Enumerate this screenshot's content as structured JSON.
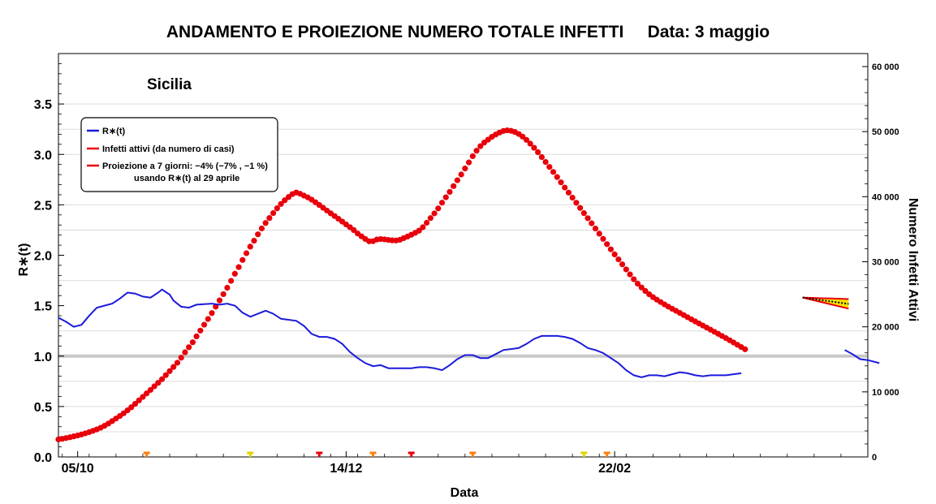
{
  "chart_data": {
    "type": "line",
    "title": "ANDAMENTO E PROIEZIONE NUMERO TOTALE INFETTI",
    "date_label": "Data: 3 maggio",
    "region_label": "Sicilia",
    "xlabel": "Data",
    "ylabel_left": "R∗(t)",
    "ylabel_right": "Numero Infetti Attivi",
    "x_ticks": [
      "05/10",
      "14/12",
      "22/02"
    ],
    "x_tick_positions": [
      5,
      75,
      145
    ],
    "xlim": [
      0,
      211
    ],
    "ylim_left": [
      0,
      4.0
    ],
    "y_ticks_left": [
      "0.0",
      "0.5",
      "1.0",
      "1.5",
      "2.0",
      "2.5",
      "3.0",
      "3.5"
    ],
    "y_tick_values_left": [
      0,
      0.5,
      1.0,
      1.5,
      2.0,
      2.5,
      3.0,
      3.5
    ],
    "ylim_right": [
      0,
      62000
    ],
    "y_ticks_right": [
      "0",
      "10 000",
      "20 000",
      "30 000",
      "40 000",
      "50 000",
      "60 000"
    ],
    "y_tick_values_right": [
      0,
      10000,
      20000,
      30000,
      40000,
      50000,
      60000
    ],
    "reference_line": 1.0,
    "grid_lines_left": [
      0.25,
      0.5,
      0.75,
      1.25,
      1.75,
      2.25,
      2.5,
      3.0,
      3.25,
      3.5
    ],
    "legend": {
      "placement": "top-left",
      "entries": [
        {
          "label": "R∗(t)",
          "color": "#1a1adc"
        },
        {
          "label": "Infetti attivi (da numero di casi)",
          "color": "#e8000b"
        },
        {
          "label": "Proiezione a 7 giorni: −4% (−7% , −1 %)",
          "color": "#e8000b"
        }
      ],
      "note": "usando R∗(t) al 29 aprile"
    },
    "series": [
      {
        "name": "R∗(t)",
        "color": "#1a1adc",
        "axis": "left",
        "segments": [
          [
            [
              0,
              1.38
            ],
            [
              2,
              1.34
            ],
            [
              4,
              1.29
            ],
            [
              6,
              1.31
            ],
            [
              8,
              1.4
            ],
            [
              10,
              1.48
            ],
            [
              14,
              1.52
            ],
            [
              16,
              1.57
            ],
            [
              18,
              1.63
            ],
            [
              20,
              1.62
            ],
            [
              22,
              1.59
            ],
            [
              24,
              1.58
            ],
            [
              26,
              1.63
            ],
            [
              27,
              1.66
            ],
            [
              29,
              1.61
            ],
            [
              30,
              1.55
            ],
            [
              32,
              1.49
            ],
            [
              34,
              1.48
            ],
            [
              36,
              1.51
            ],
            [
              40,
              1.52
            ],
            [
              42,
              1.51
            ],
            [
              44,
              1.52
            ],
            [
              46,
              1.5
            ],
            [
              48,
              1.43
            ],
            [
              50,
              1.39
            ],
            [
              52,
              1.42
            ],
            [
              54,
              1.45
            ],
            [
              56,
              1.42
            ],
            [
              58,
              1.37
            ],
            [
              62,
              1.35
            ],
            [
              64,
              1.3
            ],
            [
              66,
              1.22
            ],
            [
              68,
              1.19
            ],
            [
              70,
              1.19
            ],
            [
              72,
              1.17
            ],
            [
              74,
              1.12
            ],
            [
              76,
              1.04
            ],
            [
              78,
              0.98
            ],
            [
              80,
              0.93
            ],
            [
              82,
              0.9
            ],
            [
              84,
              0.91
            ],
            [
              86,
              0.88
            ],
            [
              88,
              0.88
            ],
            [
              90,
              0.88
            ],
            [
              92,
              0.88
            ],
            [
              94,
              0.89
            ],
            [
              96,
              0.89
            ],
            [
              98,
              0.88
            ],
            [
              100,
              0.86
            ],
            [
              102,
              0.91
            ],
            [
              104,
              0.97
            ],
            [
              106,
              1.01
            ],
            [
              108,
              1.01
            ],
            [
              110,
              0.98
            ],
            [
              112,
              0.98
            ],
            [
              114,
              1.02
            ],
            [
              116,
              1.06
            ],
            [
              120,
              1.08
            ],
            [
              122,
              1.12
            ],
            [
              124,
              1.17
            ],
            [
              126,
              1.2
            ],
            [
              128,
              1.2
            ],
            [
              130,
              1.2
            ],
            [
              132,
              1.19
            ],
            [
              134,
              1.17
            ],
            [
              136,
              1.13
            ],
            [
              138,
              1.08
            ],
            [
              140,
              1.06
            ],
            [
              142,
              1.03
            ],
            [
              144,
              0.98
            ],
            [
              146,
              0.93
            ],
            [
              148,
              0.86
            ],
            [
              150,
              0.81
            ],
            [
              152,
              0.79
            ],
            [
              154,
              0.81
            ],
            [
              156,
              0.81
            ],
            [
              158,
              0.8
            ],
            [
              160,
              0.82
            ],
            [
              162,
              0.84
            ],
            [
              164,
              0.83
            ],
            [
              166,
              0.81
            ],
            [
              168,
              0.8
            ],
            [
              170,
              0.81
            ],
            [
              172,
              0.81
            ],
            [
              174,
              0.81
            ],
            [
              176,
              0.82
            ],
            [
              178,
              0.83
            ]
          ],
          [
            [
              205,
              1.06
            ],
            [
              207,
              1.02
            ],
            [
              209,
              0.97
            ],
            [
              211,
              0.96
            ],
            [
              214,
              0.93
            ]
          ]
        ]
      },
      {
        "name": "Infetti attivi (da numero di casi)",
        "color": "#e8000b",
        "axis": "right",
        "points": [
          [
            0,
            2695
          ],
          [
            1,
            2781
          ],
          [
            2,
            2901
          ],
          [
            3,
            3022
          ],
          [
            4,
            3163
          ],
          [
            5,
            3291
          ],
          [
            6,
            3448
          ],
          [
            7,
            3623
          ],
          [
            8,
            3808
          ],
          [
            9,
            4018
          ],
          [
            10,
            4228
          ],
          [
            11,
            4486
          ],
          [
            12,
            4784
          ],
          [
            13,
            5132
          ],
          [
            14,
            5507
          ],
          [
            15,
            5904
          ],
          [
            16,
            6290
          ],
          [
            17,
            6706
          ],
          [
            18,
            7164
          ],
          [
            19,
            7638
          ],
          [
            20,
            8158
          ],
          [
            21,
            8691
          ],
          [
            22,
            9227
          ],
          [
            23,
            9766
          ],
          [
            24,
            10302
          ],
          [
            25,
            10854
          ],
          [
            26,
            11388
          ],
          [
            27,
            11950
          ],
          [
            28,
            12574
          ],
          [
            29,
            13191
          ],
          [
            30,
            13827
          ],
          [
            31,
            14476
          ],
          [
            32,
            15255
          ],
          [
            33,
            16090
          ],
          [
            34,
            16865
          ],
          [
            35,
            17629
          ],
          [
            36,
            18529
          ],
          [
            37,
            19422
          ],
          [
            38,
            20327
          ],
          [
            39,
            21200
          ],
          [
            40,
            22109
          ],
          [
            41,
            23092
          ],
          [
            42,
            24058
          ],
          [
            43,
            25018
          ],
          [
            44,
            26007
          ],
          [
            45,
            27065
          ],
          [
            46,
            28159
          ],
          [
            47,
            29176
          ],
          [
            48,
            30273
          ],
          [
            49,
            31313
          ],
          [
            50,
            32321
          ],
          [
            51,
            33234
          ],
          [
            52,
            34217
          ],
          [
            53,
            35115
          ],
          [
            54,
            35956
          ],
          [
            55,
            36719
          ],
          [
            56,
            37481
          ],
          [
            57,
            38216
          ],
          [
            58,
            38884
          ],
          [
            59,
            39454
          ],
          [
            60,
            39947
          ],
          [
            61,
            40406
          ],
          [
            62,
            40646
          ],
          [
            63,
            40448
          ],
          [
            64,
            40168
          ],
          [
            65,
            39888
          ],
          [
            66,
            39548
          ],
          [
            67,
            39150
          ],
          [
            68,
            38728
          ],
          [
            69,
            38295
          ],
          [
            70,
            37862
          ],
          [
            71,
            37437
          ],
          [
            72,
            37023
          ],
          [
            73,
            36597
          ],
          [
            74,
            36164
          ],
          [
            75,
            35731
          ],
          [
            76,
            35309
          ],
          [
            77,
            34864
          ],
          [
            78,
            34347
          ],
          [
            79,
            33906
          ],
          [
            80,
            33505
          ],
          [
            81,
            33140
          ],
          [
            82,
            33157
          ],
          [
            83,
            33414
          ],
          [
            84,
            33490
          ],
          [
            85,
            33440
          ],
          [
            86,
            33365
          ],
          [
            87,
            33290
          ],
          [
            88,
            33266
          ],
          [
            89,
            33378
          ],
          [
            90,
            33633
          ],
          [
            91,
            33868
          ],
          [
            92,
            34153
          ],
          [
            93,
            34437
          ],
          [
            94,
            34778
          ],
          [
            95,
            35302
          ],
          [
            96,
            35988
          ],
          [
            97,
            36706
          ],
          [
            98,
            37430
          ],
          [
            99,
            38197
          ],
          [
            100,
            39077
          ],
          [
            101,
            39913
          ],
          [
            102,
            40733
          ],
          [
            103,
            41626
          ],
          [
            104,
            42527
          ],
          [
            105,
            43411
          ],
          [
            106,
            44334
          ],
          [
            107,
            45268
          ],
          [
            108,
            46229
          ],
          [
            109,
            47069
          ],
          [
            110,
            47767
          ],
          [
            111,
            48321
          ],
          [
            112,
            48767
          ],
          [
            113,
            49198
          ],
          [
            114,
            49555
          ],
          [
            115,
            49860
          ],
          [
            116,
            50109
          ],
          [
            117,
            50201
          ],
          [
            118,
            50128
          ],
          [
            119,
            49943
          ],
          [
            120,
            49644
          ],
          [
            121,
            49234
          ],
          [
            122,
            48740
          ],
          [
            123,
            48151
          ],
          [
            124,
            47521
          ],
          [
            125,
            46840
          ],
          [
            126,
            46092
          ],
          [
            127,
            45339
          ],
          [
            128,
            44570
          ],
          [
            129,
            43802
          ],
          [
            130,
            43018
          ],
          [
            131,
            42207
          ],
          [
            132,
            41410
          ],
          [
            133,
            40627
          ],
          [
            134,
            39854
          ],
          [
            135,
            39072
          ],
          [
            136,
            38270
          ],
          [
            137,
            37468
          ],
          [
            138,
            36694
          ],
          [
            139,
            35911
          ],
          [
            140,
            35110
          ],
          [
            141,
            34318
          ],
          [
            142,
            33521
          ],
          [
            143,
            32709
          ],
          [
            144,
            31915
          ],
          [
            145,
            31138
          ],
          [
            146,
            30367
          ],
          [
            147,
            29598
          ],
          [
            148,
            28826
          ],
          [
            149,
            28053
          ],
          [
            150,
            27313
          ],
          [
            151,
            26635
          ],
          [
            152,
            26052
          ],
          [
            153,
            25507
          ],
          [
            154,
            25002
          ],
          [
            155,
            24556
          ],
          [
            156,
            24168
          ],
          [
            157,
            23801
          ],
          [
            158,
            23437
          ],
          [
            159,
            23099
          ],
          [
            160,
            22777
          ],
          [
            161,
            22454
          ],
          [
            162,
            22131
          ],
          [
            163,
            21804
          ],
          [
            164,
            21483
          ],
          [
            165,
            21148
          ],
          [
            166,
            20829
          ],
          [
            167,
            20514
          ],
          [
            168,
            20195
          ],
          [
            169,
            19875
          ],
          [
            170,
            19556
          ],
          [
            171,
            19236
          ],
          [
            172,
            18913
          ],
          [
            173,
            18587
          ],
          [
            174,
            18258
          ],
          [
            175,
            17922
          ],
          [
            176,
            17589
          ],
          [
            177,
            17236
          ],
          [
            178,
            16895
          ],
          [
            179,
            16547
          ]
        ]
      }
    ],
    "projection": {
      "name": "Proiezione a 7 giorni: −4% (−7% , −1 %)",
      "axis": "right",
      "x": [
        194,
        206
      ],
      "central": [
        24500,
        23520
      ],
      "low": [
        24500,
        22790
      ],
      "high": [
        24500,
        24260
      ]
    },
    "event_markers": [
      {
        "x": 23,
        "color": "#ff7f0e"
      },
      {
        "x": 50,
        "color": "#e3d400"
      },
      {
        "x": 68,
        "color": "#e8000b"
      },
      {
        "x": 82,
        "color": "#ff7f0e"
      },
      {
        "x": 92,
        "color": "#e8000b"
      },
      {
        "x": 108,
        "color": "#ff7f0e"
      },
      {
        "x": 137,
        "color": "#e3d400"
      },
      {
        "x": 143,
        "color": "#ff7f0e"
      }
    ]
  }
}
